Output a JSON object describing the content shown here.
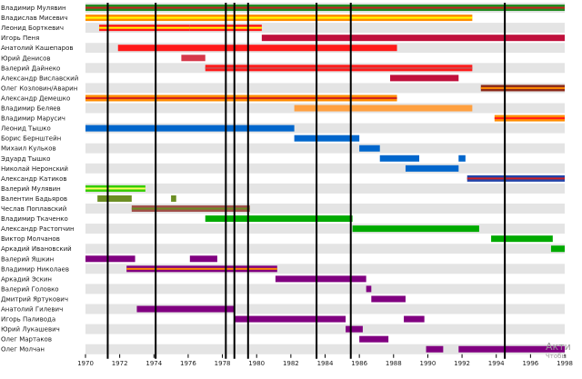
{
  "chart_data": {
    "type": "timeline",
    "title": "",
    "xlabel": "",
    "ylabel": "",
    "xlim": [
      1970,
      1998
    ],
    "xticks": [
      1970,
      1972,
      1974,
      1976,
      1978,
      1980,
      1982,
      1984,
      1986,
      1988,
      1990,
      1992,
      1994,
      1996,
      1998
    ],
    "grid": "alternating-row-stripes",
    "legend": "none",
    "event_lines": [
      1971.3,
      1974.1,
      1978.2,
      1978.7,
      1979.5,
      1983.5,
      1985.5,
      1994.5
    ],
    "members": [
      {
        "name": "Владимир Мулявин",
        "color": "#228b22",
        "stripe": "#cc2222",
        "periods": [
          [
            1970,
            1998
          ]
        ]
      },
      {
        "name": "Владислав Мисевич",
        "color": "#ff8c00",
        "stripe": "#ffff00",
        "periods": [
          [
            1970,
            1992.6
          ]
        ]
      },
      {
        "name": "Леонид Борткевич",
        "color": "#ff1a1a",
        "stripe": "#ffff00",
        "periods": [
          [
            1970.8,
            1976.1
          ],
          [
            1976.1,
            1980.3
          ]
        ]
      },
      {
        "name": "Игорь Пеня",
        "color": "#c0103c",
        "periods": [
          [
            1980.3,
            1998
          ]
        ]
      },
      {
        "name": "Анатолий Кашепаров",
        "color": "#ff1a1a",
        "periods": [
          [
            1971.9,
            1988.2
          ]
        ]
      },
      {
        "name": "Юрий Денисов",
        "color": "#d6384a",
        "periods": [
          [
            1975.6,
            1977
          ]
        ]
      },
      {
        "name": "Валерий Дайнеко",
        "color": "#ff1a1a",
        "stripe": "#d24a4a",
        "periods": [
          [
            1977,
            1992.6
          ]
        ]
      },
      {
        "name": "Александр Виславский",
        "color": "#c0103c",
        "periods": [
          [
            1987.8,
            1991.8
          ]
        ]
      },
      {
        "name": "Олег Козловин/Аварин",
        "color": "#8b2a1a",
        "stripe": "#ff8c00",
        "periods": [
          [
            1993.1,
            1998
          ]
        ]
      },
      {
        "name": "Александр Демешко",
        "color": "#ff8c00",
        "stripe": "#cc2222",
        "periods": [
          [
            1970,
            1988.2
          ]
        ]
      },
      {
        "name": "Владимир Беляев",
        "color": "#ffa040",
        "periods": [
          [
            1982.2,
            1992.6
          ]
        ]
      },
      {
        "name": "Владимир Марусич",
        "color": "#ff8c00",
        "stripe": "#ff1a1a",
        "periods": [
          [
            1993.9,
            1998
          ]
        ]
      },
      {
        "name": "Леонид Тышко",
        "color": "#0066cc",
        "periods": [
          [
            1970,
            1982.2
          ]
        ]
      },
      {
        "name": "Борис Бернштейн",
        "color": "#0066cc",
        "periods": [
          [
            1982.2,
            1986
          ]
        ]
      },
      {
        "name": "Михаил Кульков",
        "color": "#0066cc",
        "periods": [
          [
            1986,
            1987.2
          ]
        ]
      },
      {
        "name": "Эдуард Тышко",
        "color": "#0066cc",
        "periods": [
          [
            1987.2,
            1989.5
          ],
          [
            1991.8,
            1992.2
          ]
        ]
      },
      {
        "name": "Николай Неронский",
        "color": "#0066cc",
        "periods": [
          [
            1988.7,
            1991.8
          ]
        ]
      },
      {
        "name": "Александр Катиков",
        "color": "#2244aa",
        "stripe": "#cc2222",
        "periods": [
          [
            1992.3,
            1998
          ]
        ]
      },
      {
        "name": "Валерий Мулявин",
        "color": "#33cc00",
        "stripe": "#ffff66",
        "periods": [
          [
            1970,
            1973.5
          ]
        ]
      },
      {
        "name": "Валентин Бадьяров",
        "color": "#6b8e23",
        "periods": [
          [
            1970.7,
            1972.7
          ],
          [
            1975,
            1975.3
          ]
        ]
      },
      {
        "name": "Чеслав Поплавский",
        "color": "#a0504a",
        "stripe": "#6b8e23",
        "periods": [
          [
            1972.7,
            1979.6
          ]
        ]
      },
      {
        "name": "Владимир Ткаченко",
        "color": "#00aa00",
        "periods": [
          [
            1977,
            1985.6
          ]
        ]
      },
      {
        "name": "Александр Растопчин",
        "color": "#00aa00",
        "periods": [
          [
            1985.6,
            1993
          ]
        ]
      },
      {
        "name": "Виктор Молчанов",
        "color": "#00aa00",
        "periods": [
          [
            1993.7,
            1997.3
          ]
        ]
      },
      {
        "name": "Аркадий Ивановский",
        "color": "#00aa00",
        "periods": [
          [
            1997.2,
            1998
          ]
        ]
      },
      {
        "name": "Валерий Яшкин",
        "color": "#800080",
        "periods": [
          [
            1970,
            1972.9
          ],
          [
            1976.1,
            1977.7
          ]
        ]
      },
      {
        "name": "Владимир Николаев",
        "color": "#800080",
        "stripe": "#ff8c00",
        "periods": [
          [
            1972.4,
            1981.2
          ]
        ]
      },
      {
        "name": "Аркадий Эскин",
        "color": "#800080",
        "periods": [
          [
            1981.1,
            1986.4
          ]
        ]
      },
      {
        "name": "Валерий Головко",
        "color": "#800080",
        "periods": [
          [
            1986.4,
            1986.7
          ]
        ]
      },
      {
        "name": "Дмитрий Яртукович",
        "color": "#800080",
        "periods": [
          [
            1986.7,
            1988.7
          ]
        ]
      },
      {
        "name": "Анатолий Гилевич",
        "color": "#800080",
        "periods": [
          [
            1973,
            1978.7
          ]
        ]
      },
      {
        "name": "Игорь Паливода",
        "color": "#800080",
        "periods": [
          [
            1978.7,
            1985.2
          ],
          [
            1988.6,
            1989.8
          ]
        ]
      },
      {
        "name": "Юрий Лукашевич",
        "color": "#800080",
        "periods": [
          [
            1985.2,
            1986.2
          ]
        ]
      },
      {
        "name": "Олег Мартаков",
        "color": "#800080",
        "periods": [
          [
            1986,
            1987.7
          ]
        ]
      },
      {
        "name": "Олег Молчан",
        "color": "#800080",
        "periods": [
          [
            1989.9,
            1990.9
          ],
          [
            1991.8,
            1998
          ]
        ]
      }
    ]
  },
  "watermark": {
    "line1": "Акти",
    "line2": "Чтобы"
  }
}
